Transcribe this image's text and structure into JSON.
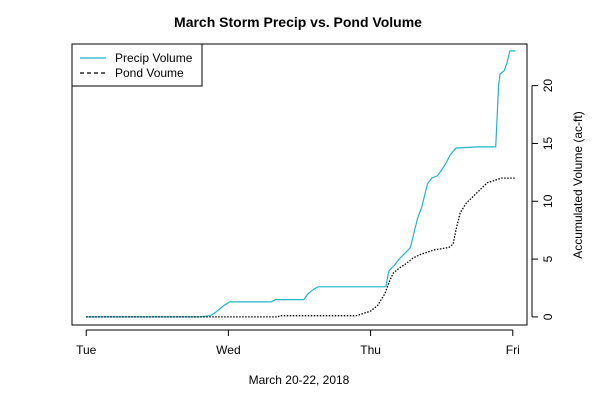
{
  "chart_data": {
    "type": "line",
    "title": "March Storm Precip vs. Pond Volume",
    "xlabel": "March 20-22, 2018",
    "ylabel": "Accumulated Volume (ac-ft)",
    "x_tick_labels": [
      "Tue",
      "Wed",
      "Thu",
      "Fri"
    ],
    "x_ticks": [
      0,
      1,
      2,
      3
    ],
    "xlim": [
      -0.1,
      3.1
    ],
    "y_ticks": [
      0,
      5,
      10,
      15,
      20
    ],
    "ylim": [
      -0.7,
      23.6
    ],
    "grid": false,
    "legend_position": "top-left",
    "series": [
      {
        "name": "Precip Volume",
        "color": "#1fb5c9",
        "dash": "solid",
        "points": [
          [
            0,
            0
          ],
          [
            0.8,
            0
          ],
          [
            0.87,
            0.1
          ],
          [
            0.9,
            0.3
          ],
          [
            0.93,
            0.6
          ],
          [
            0.97,
            1.0
          ],
          [
            1.01,
            1.3
          ],
          [
            1.3,
            1.3
          ],
          [
            1.33,
            1.5
          ],
          [
            1.53,
            1.5
          ],
          [
            1.56,
            2.0
          ],
          [
            1.6,
            2.4
          ],
          [
            1.63,
            2.6
          ],
          [
            2.1,
            2.6
          ],
          [
            2.11,
            2.7
          ],
          [
            2.12,
            3.5
          ],
          [
            2.13,
            4.0
          ],
          [
            2.17,
            4.5
          ],
          [
            2.2,
            5.0
          ],
          [
            2.25,
            5.6
          ],
          [
            2.28,
            6.0
          ],
          [
            2.3,
            7.0
          ],
          [
            2.33,
            8.5
          ],
          [
            2.36,
            9.5
          ],
          [
            2.38,
            10.5
          ],
          [
            2.4,
            11.5
          ],
          [
            2.43,
            12.0
          ],
          [
            2.47,
            12.2
          ],
          [
            2.5,
            12.7
          ],
          [
            2.53,
            13.3
          ],
          [
            2.56,
            14.0
          ],
          [
            2.6,
            14.6
          ],
          [
            2.75,
            14.7
          ],
          [
            2.88,
            14.7
          ],
          [
            2.9,
            20.0
          ],
          [
            2.91,
            21.0
          ],
          [
            2.94,
            21.3
          ],
          [
            2.96,
            22.0
          ],
          [
            2.98,
            23.0
          ],
          [
            3.02,
            23.0
          ]
        ]
      },
      {
        "name": "Pond Voume",
        "color": "#000000",
        "dash": "dotted",
        "points": [
          [
            0,
            0
          ],
          [
            1.35,
            0
          ],
          [
            1.36,
            0.1
          ],
          [
            1.9,
            0.1
          ],
          [
            1.95,
            0.3
          ],
          [
            2.0,
            0.5
          ],
          [
            2.05,
            1.0
          ],
          [
            2.1,
            2.0
          ],
          [
            2.13,
            3.0
          ],
          [
            2.16,
            3.8
          ],
          [
            2.2,
            4.2
          ],
          [
            2.25,
            4.6
          ],
          [
            2.3,
            5.1
          ],
          [
            2.35,
            5.4
          ],
          [
            2.4,
            5.6
          ],
          [
            2.45,
            5.8
          ],
          [
            2.5,
            5.9
          ],
          [
            2.55,
            6.0
          ],
          [
            2.58,
            6.3
          ],
          [
            2.6,
            7.5
          ],
          [
            2.63,
            9.0
          ],
          [
            2.67,
            9.8
          ],
          [
            2.72,
            10.4
          ],
          [
            2.77,
            11.0
          ],
          [
            2.82,
            11.6
          ],
          [
            2.87,
            11.8
          ],
          [
            2.92,
            12.0
          ],
          [
            3.02,
            12.0
          ]
        ]
      }
    ]
  }
}
